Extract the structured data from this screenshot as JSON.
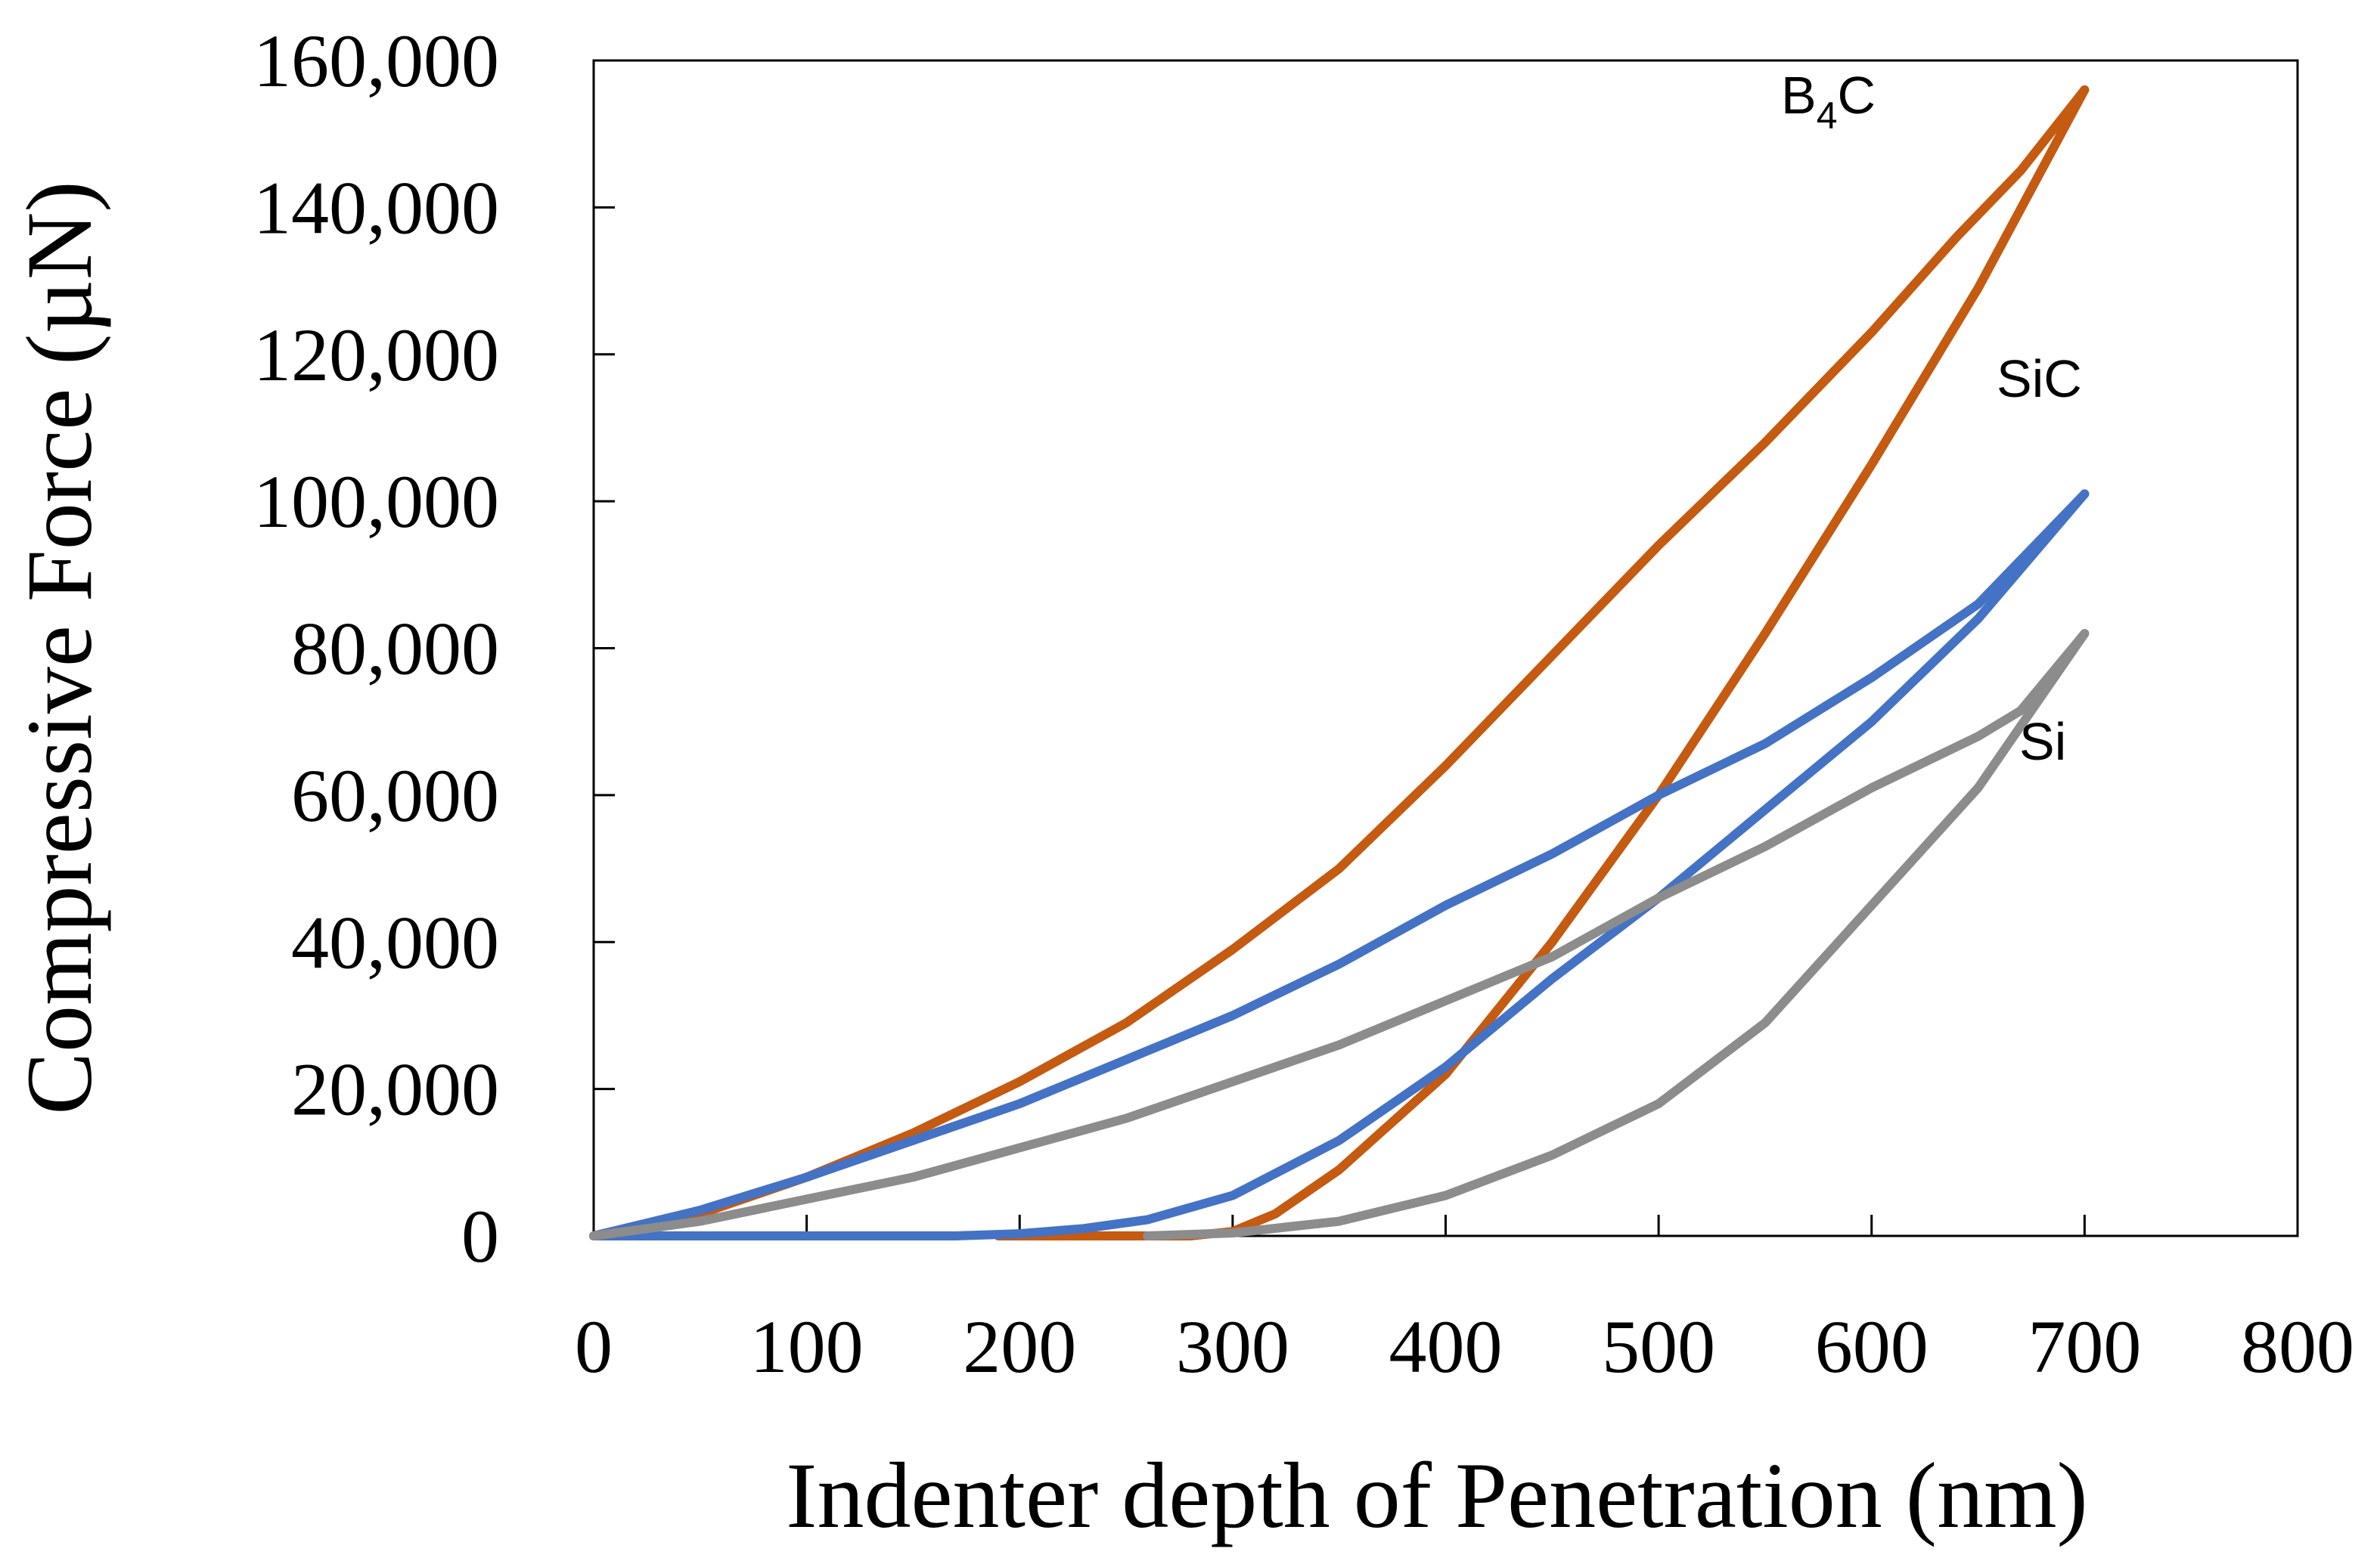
{
  "chart_data": {
    "type": "line",
    "title": "",
    "xlabel": "Indenter depth of Penetration (nm)",
    "ylabel": "Compressive Force (µN)",
    "xlim": [
      0,
      800
    ],
    "ylim": [
      0,
      160000
    ],
    "x_ticks": [
      "0",
      "100",
      "200",
      "300",
      "400",
      "500",
      "600",
      "700",
      "800"
    ],
    "y_ticks": [
      "0",
      "20,000",
      "40,000",
      "60,000",
      "80,000",
      "100,000",
      "120,000",
      "140,000",
      "160,000"
    ],
    "grid": false,
    "legend": "none",
    "series": [
      {
        "name": "B4C",
        "label_text": "B",
        "label_sub": "4",
        "label_tail": "C",
        "color": "#C55A11",
        "loading": [
          [
            0,
            0
          ],
          [
            50,
            3000
          ],
          [
            100,
            8000
          ],
          [
            150,
            14000
          ],
          [
            200,
            21000
          ],
          [
            250,
            29000
          ],
          [
            300,
            39000
          ],
          [
            350,
            50000
          ],
          [
            400,
            64000
          ],
          [
            450,
            79000
          ],
          [
            500,
            94000
          ],
          [
            550,
            108000
          ],
          [
            600,
            123000
          ],
          [
            640,
            136000
          ],
          [
            670,
            145000
          ],
          [
            700,
            156000
          ]
        ],
        "unloading": [
          [
            700,
            156000
          ],
          [
            650,
            129000
          ],
          [
            600,
            105000
          ],
          [
            550,
            82000
          ],
          [
            500,
            60000
          ],
          [
            450,
            40000
          ],
          [
            400,
            22000
          ],
          [
            350,
            9000
          ],
          [
            320,
            3000
          ],
          [
            300,
            600
          ],
          [
            280,
            0
          ],
          [
            190,
            0
          ]
        ]
      },
      {
        "name": "SiC",
        "label_text": "SiC",
        "color": "#4472C4",
        "loading": [
          [
            0,
            0
          ],
          [
            50,
            3500
          ],
          [
            100,
            8000
          ],
          [
            150,
            13000
          ],
          [
            200,
            18000
          ],
          [
            250,
            24000
          ],
          [
            300,
            30000
          ],
          [
            350,
            37000
          ],
          [
            400,
            45000
          ],
          [
            450,
            52000
          ],
          [
            500,
            60000
          ],
          [
            550,
            67000
          ],
          [
            600,
            76000
          ],
          [
            650,
            86000
          ],
          [
            700,
            101000
          ]
        ],
        "unloading": [
          [
            700,
            101000
          ],
          [
            650,
            84000
          ],
          [
            600,
            70000
          ],
          [
            550,
            58000
          ],
          [
            500,
            46000
          ],
          [
            450,
            35000
          ],
          [
            400,
            23000
          ],
          [
            350,
            13000
          ],
          [
            300,
            5500
          ],
          [
            260,
            2200
          ],
          [
            230,
            1000
          ],
          [
            200,
            300
          ],
          [
            170,
            0
          ],
          [
            0,
            0
          ]
        ]
      },
      {
        "name": "Si",
        "label_text": "Si",
        "color": "#8C8C8C",
        "loading": [
          [
            0,
            0
          ],
          [
            50,
            2000
          ],
          [
            100,
            5000
          ],
          [
            150,
            8000
          ],
          [
            200,
            12000
          ],
          [
            250,
            16000
          ],
          [
            300,
            21000
          ],
          [
            350,
            26000
          ],
          [
            400,
            32000
          ],
          [
            450,
            38000
          ],
          [
            500,
            46000
          ],
          [
            550,
            53000
          ],
          [
            600,
            61000
          ],
          [
            650,
            68000
          ],
          [
            670,
            71500
          ],
          [
            700,
            82000
          ]
        ],
        "unloading": [
          [
            700,
            82000
          ],
          [
            650,
            61000
          ],
          [
            600,
            45000
          ],
          [
            550,
            29000
          ],
          [
            500,
            18000
          ],
          [
            450,
            11000
          ],
          [
            400,
            5500
          ],
          [
            350,
            2000
          ],
          [
            300,
            400
          ],
          [
            260,
            0
          ]
        ]
      }
    ]
  }
}
